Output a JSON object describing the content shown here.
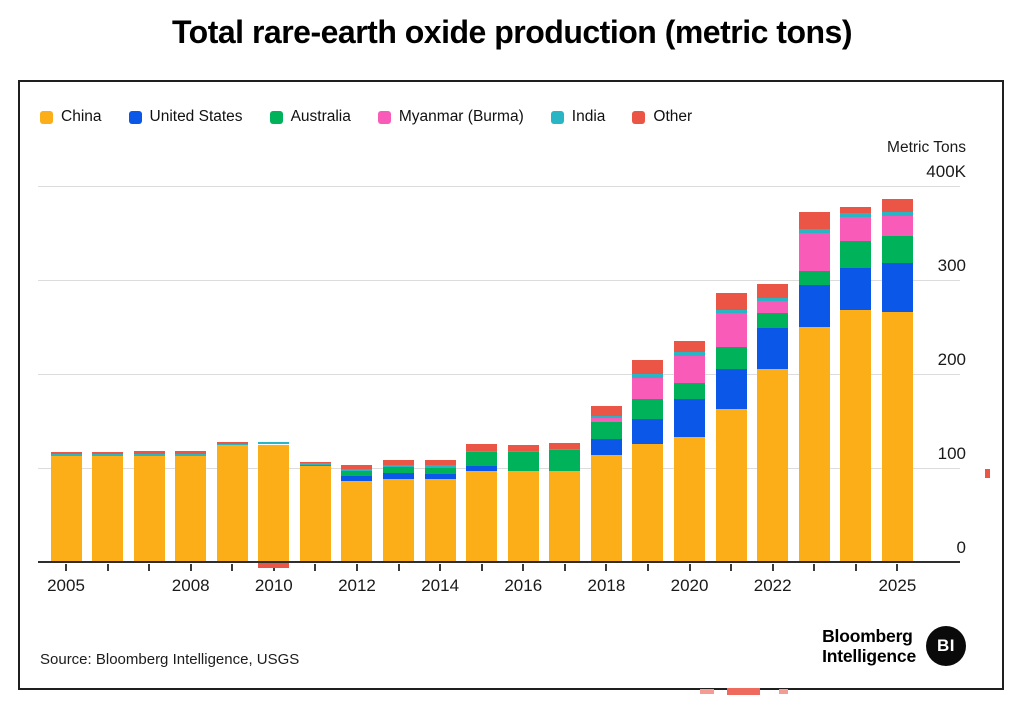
{
  "title": "Total rare-earth oxide production (metric tons)",
  "legend": [
    {
      "label": "China",
      "color": "#FBAE17"
    },
    {
      "label": "United States",
      "color": "#0B57E8"
    },
    {
      "label": "Australia",
      "color": "#00B259"
    },
    {
      "label": "Myanmar (Burma)",
      "color": "#F95CB8"
    },
    {
      "label": "India",
      "color": "#2AB5C5"
    },
    {
      "label": "Other",
      "color": "#EB5546"
    }
  ],
  "axis": {
    "unit_label": "Metric Tons",
    "y_ticks": [
      {
        "label": "400K",
        "value": 400
      },
      {
        "label": "300",
        "value": 300
      },
      {
        "label": "200",
        "value": 200
      },
      {
        "label": "100",
        "value": 100
      },
      {
        "label": "0",
        "value": 0
      }
    ],
    "x_ticks": [
      {
        "label": "2005",
        "index": 0
      },
      {
        "label": "2008",
        "index": 3
      },
      {
        "label": "2010",
        "index": 5
      },
      {
        "label": "2012",
        "index": 7
      },
      {
        "label": "2014",
        "index": 9
      },
      {
        "label": "2016",
        "index": 11
      },
      {
        "label": "2018",
        "index": 13
      },
      {
        "label": "2020",
        "index": 15
      },
      {
        "label": "2022",
        "index": 17
      },
      {
        "label": "2025",
        "index": 20
      }
    ]
  },
  "chart_data": {
    "type": "bar",
    "stacked": true,
    "title": "Total rare-earth oxide production (metric tons)",
    "ylabel": "Metric Tons",
    "unit": "thousand metric tons",
    "ylim": [
      0,
      400
    ],
    "grid": true,
    "legend_position": "top-left",
    "categories": [
      "2005",
      "2006",
      "2007",
      "2008",
      "2009",
      "2010",
      "2011",
      "2012",
      "2013",
      "2014",
      "2015",
      "2016",
      "2017",
      "2018",
      "2019",
      "2020",
      "2021",
      "2022",
      "2023",
      "2024",
      "2025"
    ],
    "series": [
      {
        "name": "China",
        "color": "#FBAE17",
        "values": [
          113,
          113,
          113,
          113,
          124,
          125,
          102,
          86,
          88,
          88,
          97,
          97,
          97,
          114,
          126,
          133,
          163,
          205,
          250,
          268,
          266
        ]
      },
      {
        "name": "United States",
        "color": "#0B57E8",
        "values": [
          0,
          0,
          0,
          0,
          0,
          0,
          0,
          6,
          7,
          6,
          5,
          0,
          0,
          17,
          26,
          40,
          42,
          44,
          45,
          45,
          52
        ]
      },
      {
        "name": "Australia",
        "color": "#00B259",
        "values": [
          0,
          0,
          0,
          0,
          0,
          0,
          1.5,
          5,
          6,
          6,
          15,
          20,
          22,
          18,
          21,
          17,
          24,
          16,
          15,
          28,
          29
        ]
      },
      {
        "name": "Myanmar (Burma)",
        "color": "#F95CB8",
        "values": [
          0,
          0,
          0,
          0,
          0,
          0,
          0,
          0,
          0,
          0,
          0,
          0,
          0,
          4,
          23,
          29,
          36,
          13,
          40,
          26,
          21
        ]
      },
      {
        "name": "India",
        "color": "#2AB5C5",
        "values": [
          2,
          2,
          2,
          2,
          2,
          3,
          1.7,
          2,
          2,
          3,
          1,
          1,
          1,
          2,
          4,
          4,
          3,
          3,
          4,
          4,
          4
        ]
      },
      {
        "name": "Other",
        "color": "#EB5546",
        "values": [
          2,
          2,
          3,
          3,
          2,
          0,
          1,
          4,
          6,
          5,
          8,
          6,
          7,
          11,
          15,
          12,
          18,
          15,
          18,
          7,
          14
        ]
      }
    ],
    "annotations": {
      "below_axis_red_mark_year": "2010"
    }
  },
  "footer": {
    "source": "Source: Bloomberg Intelligence, USGS",
    "brand_line1": "Bloomberg",
    "brand_line2": "Intelligence",
    "brand_badge": "BI"
  }
}
